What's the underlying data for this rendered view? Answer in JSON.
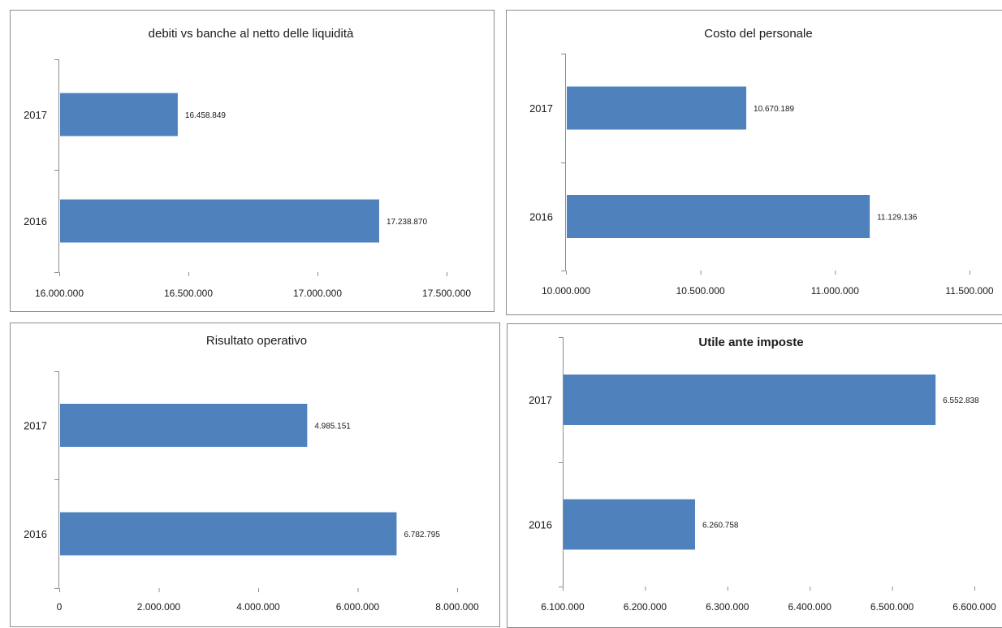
{
  "chart_data": [
    {
      "type": "bar",
      "orientation": "horizontal",
      "title": "debiti vs banche al netto delle liquidità",
      "title_bold": false,
      "categories": [
        "2017",
        "2016"
      ],
      "values": [
        16458849,
        17238870
      ],
      "data_labels": [
        "16.458.849",
        "17.238.870"
      ],
      "xlim": [
        16000000,
        17500000
      ],
      "xticks": [
        16000000,
        16500000,
        17000000,
        17500000
      ],
      "xtick_labels": [
        "16.000.000",
        "16.500.000",
        "17.000.000",
        "17.500.000"
      ],
      "color": "#4f81bd",
      "grid": false,
      "legend": "none"
    },
    {
      "type": "bar",
      "orientation": "horizontal",
      "title": "Costo del personale",
      "title_bold": false,
      "categories": [
        "2017",
        "2016"
      ],
      "values": [
        10670189,
        11129136
      ],
      "data_labels": [
        "10.670.189",
        "11.129.136"
      ],
      "xlim": [
        10000000,
        11500000
      ],
      "xticks": [
        10000000,
        10500000,
        11000000,
        11500000
      ],
      "xtick_labels": [
        "10.000.000",
        "10.500.000",
        "11.000.000",
        "11.500.000"
      ],
      "color": "#4f81bd",
      "grid": false,
      "legend": "none"
    },
    {
      "type": "bar",
      "orientation": "horizontal",
      "title": "Risultato operativo",
      "title_bold": false,
      "categories": [
        "2017",
        "2016"
      ],
      "values": [
        4985151,
        6782795
      ],
      "data_labels": [
        "4.985.151",
        "6.782.795"
      ],
      "xlim": [
        0,
        8000000
      ],
      "xticks": [
        0,
        2000000,
        4000000,
        6000000,
        8000000
      ],
      "xtick_labels": [
        "0",
        "2.000.000",
        "4.000.000",
        "6.000.000",
        "8.000.000"
      ],
      "color": "#4f81bd",
      "grid": false,
      "legend": "none"
    },
    {
      "type": "bar",
      "orientation": "horizontal",
      "title": "Utile ante imposte",
      "title_bold": true,
      "categories": [
        "2017",
        "2016"
      ],
      "values": [
        6552838,
        6260758
      ],
      "data_labels": [
        "6.552.838",
        "6.260.758"
      ],
      "xlim": [
        6100000,
        6600000
      ],
      "xticks": [
        6100000,
        6200000,
        6300000,
        6400000,
        6500000,
        6600000
      ],
      "xtick_labels": [
        "6.100.000",
        "6.200.000",
        "6.300.000",
        "6.400.000",
        "6.500.000",
        "6.600.000"
      ],
      "color": "#4f81bd",
      "grid": false,
      "legend": "none"
    }
  ]
}
